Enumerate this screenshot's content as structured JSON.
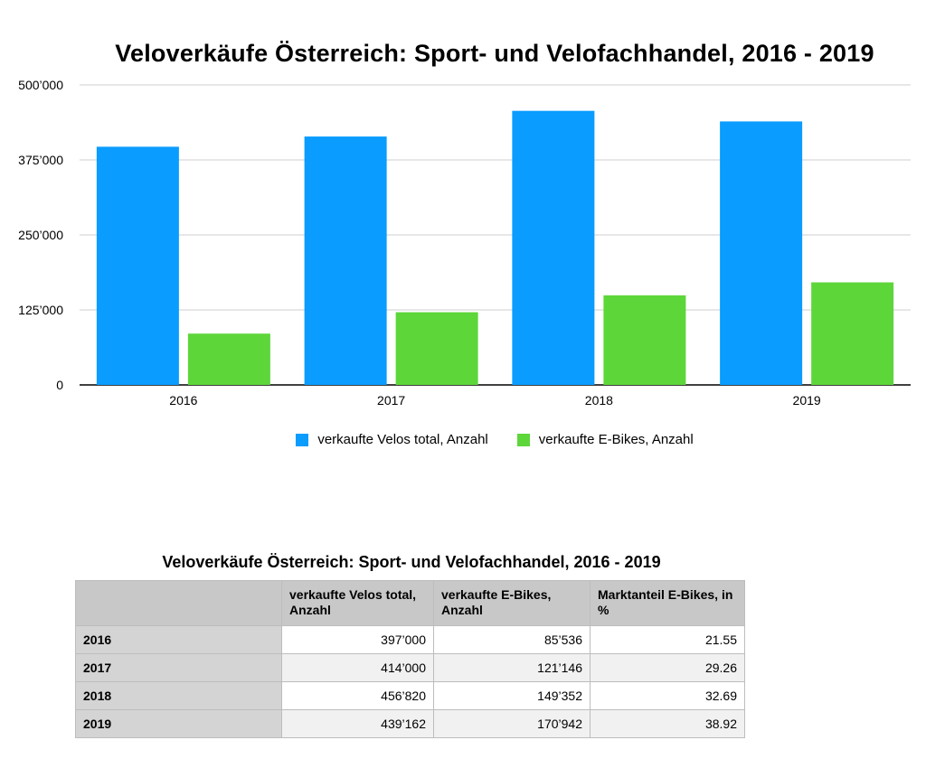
{
  "chart_data": {
    "type": "bar",
    "title": "Veloverkäufe Österreich: Sport- und Velofachhandel, 2016 - 2019",
    "categories": [
      "2016",
      "2017",
      "2018",
      "2019"
    ],
    "series": [
      {
        "name": "verkaufte Velos total, Anzahl",
        "color": "#0a9cff",
        "values": [
          397000,
          414000,
          456820,
          439162
        ]
      },
      {
        "name": "verkaufte E-Bikes, Anzahl",
        "color": "#5dd63a",
        "values": [
          85536,
          121146,
          149352,
          170942
        ]
      }
    ],
    "ylim": [
      0,
      500000
    ],
    "yticks": [
      0,
      125000,
      250000,
      375000,
      500000
    ],
    "ytick_labels": [
      "0",
      "125’000",
      "250’000",
      "375’000",
      "500’000"
    ],
    "xlabel": "",
    "ylabel": "",
    "grid": true,
    "legend": "bottom-center"
  },
  "table": {
    "title": "Veloverkäufe Österreich: Sport- und Velofachhandel, 2016 - 2019",
    "headers": [
      "",
      "verkaufte Velos total, Anzahl",
      "verkaufte E-Bikes, Anzahl",
      "Marktanteil E-Bikes, in %"
    ],
    "rows": [
      [
        "2016",
        "397’000",
        "85’536",
        "21.55"
      ],
      [
        "2017",
        "414’000",
        "121’146",
        "29.26"
      ],
      [
        "2018",
        "456’820",
        "149’352",
        "32.69"
      ],
      [
        "2019",
        "439’162",
        "170’942",
        "38.92"
      ]
    ]
  }
}
